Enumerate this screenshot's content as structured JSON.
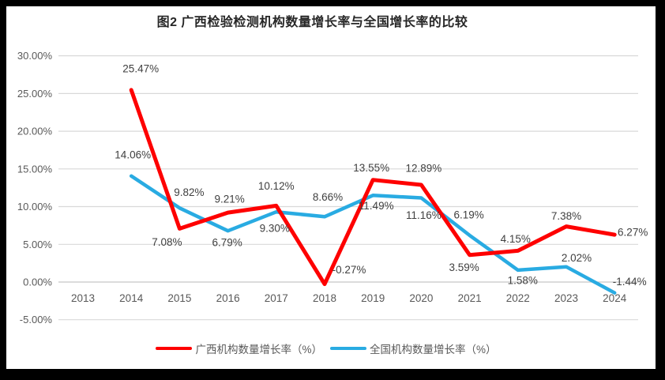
{
  "page": {
    "frame_color": "#000000",
    "background_color": "#ffffff"
  },
  "chart_data": {
    "type": "line",
    "title": "图2 广西检验检测机构数量增长率与全国增长率的比较",
    "categories": [
      "2013",
      "2014",
      "2015",
      "2016",
      "2017",
      "2018",
      "2019",
      "2020",
      "2021",
      "2022",
      "2023",
      "2024"
    ],
    "series": [
      {
        "name": "广西机构数量增长率（%）",
        "color": "#FE0000",
        "values": [
          null,
          25.47,
          7.08,
          9.21,
          10.12,
          -0.27,
          13.55,
          12.89,
          3.59,
          4.15,
          7.38,
          6.27
        ]
      },
      {
        "name": "全国机构数量增长率（%）",
        "color": "#29ABE2",
        "values": [
          null,
          14.06,
          9.82,
          6.79,
          9.3,
          8.66,
          11.49,
          11.16,
          6.19,
          1.58,
          2.02,
          -1.44
        ]
      }
    ],
    "ylim": [
      -5,
      30
    ],
    "ytick_step": 5,
    "ytick_labels": [
      "30.00%",
      "25.00%",
      "20.00%",
      "15.00%",
      "10.00%",
      "5.00%",
      "0.00%",
      "-5.00%"
    ],
    "grid": true,
    "legend_position": "bottom",
    "colors": {
      "grid": "#D9D9D9",
      "zero_axis": "#C6C6C6",
      "axis_text": "#595959",
      "data_label_text": "#3F3F3F"
    },
    "label_offsets": [
      [
        null,
        [
          12,
          -27
        ],
        [
          -16,
          17
        ],
        [
          2,
          -17
        ],
        [
          0,
          -25
        ],
        [
          31,
          -18
        ],
        [
          -2,
          -15
        ],
        [
          3,
          -21
        ],
        [
          -7,
          16
        ],
        [
          -3,
          -15
        ],
        [
          0,
          -13
        ],
        [
          23,
          -3
        ]
      ],
      [
        null,
        [
          2,
          -27
        ],
        [
          12,
          -20
        ],
        [
          -1,
          15
        ],
        [
          -2,
          21
        ],
        [
          4,
          -25
        ],
        [
          4,
          13
        ],
        [
          3,
          22
        ],
        [
          -1,
          -26
        ],
        [
          6,
          13
        ],
        [
          13,
          -11
        ],
        [
          19,
          -14
        ]
      ]
    ]
  }
}
